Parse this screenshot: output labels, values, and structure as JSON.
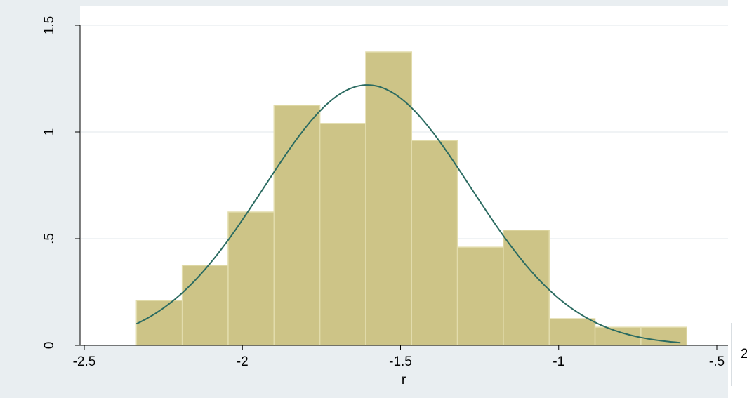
{
  "chart_data": {
    "type": "histogram",
    "xlabel": "r",
    "ylabel": "",
    "xlim": [
      -2.58,
      -0.49
    ],
    "ylim": [
      0,
      1.5
    ],
    "x_ticks": [
      {
        "value": -2.5,
        "label": "-2.5"
      },
      {
        "value": -2.0,
        "label": "-2"
      },
      {
        "value": -1.5,
        "label": "-1.5"
      },
      {
        "value": -1.0,
        "label": "-1"
      },
      {
        "value": -0.5,
        "label": "-.5"
      }
    ],
    "y_ticks": [
      {
        "value": 0,
        "label": "0"
      },
      {
        "value": 0.5,
        "label": ".5"
      },
      {
        "value": 1.0,
        "label": "1"
      },
      {
        "value": 1.5,
        "label": "1.5"
      }
    ],
    "grid": true,
    "bins": [
      {
        "x0": -2.335,
        "x1": -2.19,
        "density": 0.21
      },
      {
        "x0": -2.19,
        "x1": -2.045,
        "density": 0.375
      },
      {
        "x0": -2.045,
        "x1": -1.9,
        "density": 0.625
      },
      {
        "x0": -1.9,
        "x1": -1.755,
        "density": 1.125
      },
      {
        "x0": -1.755,
        "x1": -1.61,
        "density": 1.04
      },
      {
        "x0": -1.61,
        "x1": -1.465,
        "density": 1.375
      },
      {
        "x0": -1.465,
        "x1": -1.32,
        "density": 0.96
      },
      {
        "x0": -1.32,
        "x1": -1.175,
        "density": 0.46
      },
      {
        "x0": -1.175,
        "x1": -1.03,
        "density": 0.54
      },
      {
        "x0": -1.03,
        "x1": -0.885,
        "density": 0.125
      },
      {
        "x0": -0.885,
        "x1": -0.74,
        "density": 0.085
      },
      {
        "x0": -0.74,
        "x1": -0.595,
        "density": 0.085
      }
    ],
    "normal_overlay": {
      "mean": -1.605,
      "sd": 0.327,
      "x_from": -2.335,
      "x_to": -0.615
    },
    "colors": {
      "bar_fill": "#cdc487",
      "bar_edge": "#e2dcac",
      "curve": "#2b6b61",
      "grid": "#e8ecef",
      "axis": "#000000",
      "plot_bg": "#ffffff",
      "graph_bg": "#e9eef1"
    }
  },
  "right_edge_label": "2"
}
